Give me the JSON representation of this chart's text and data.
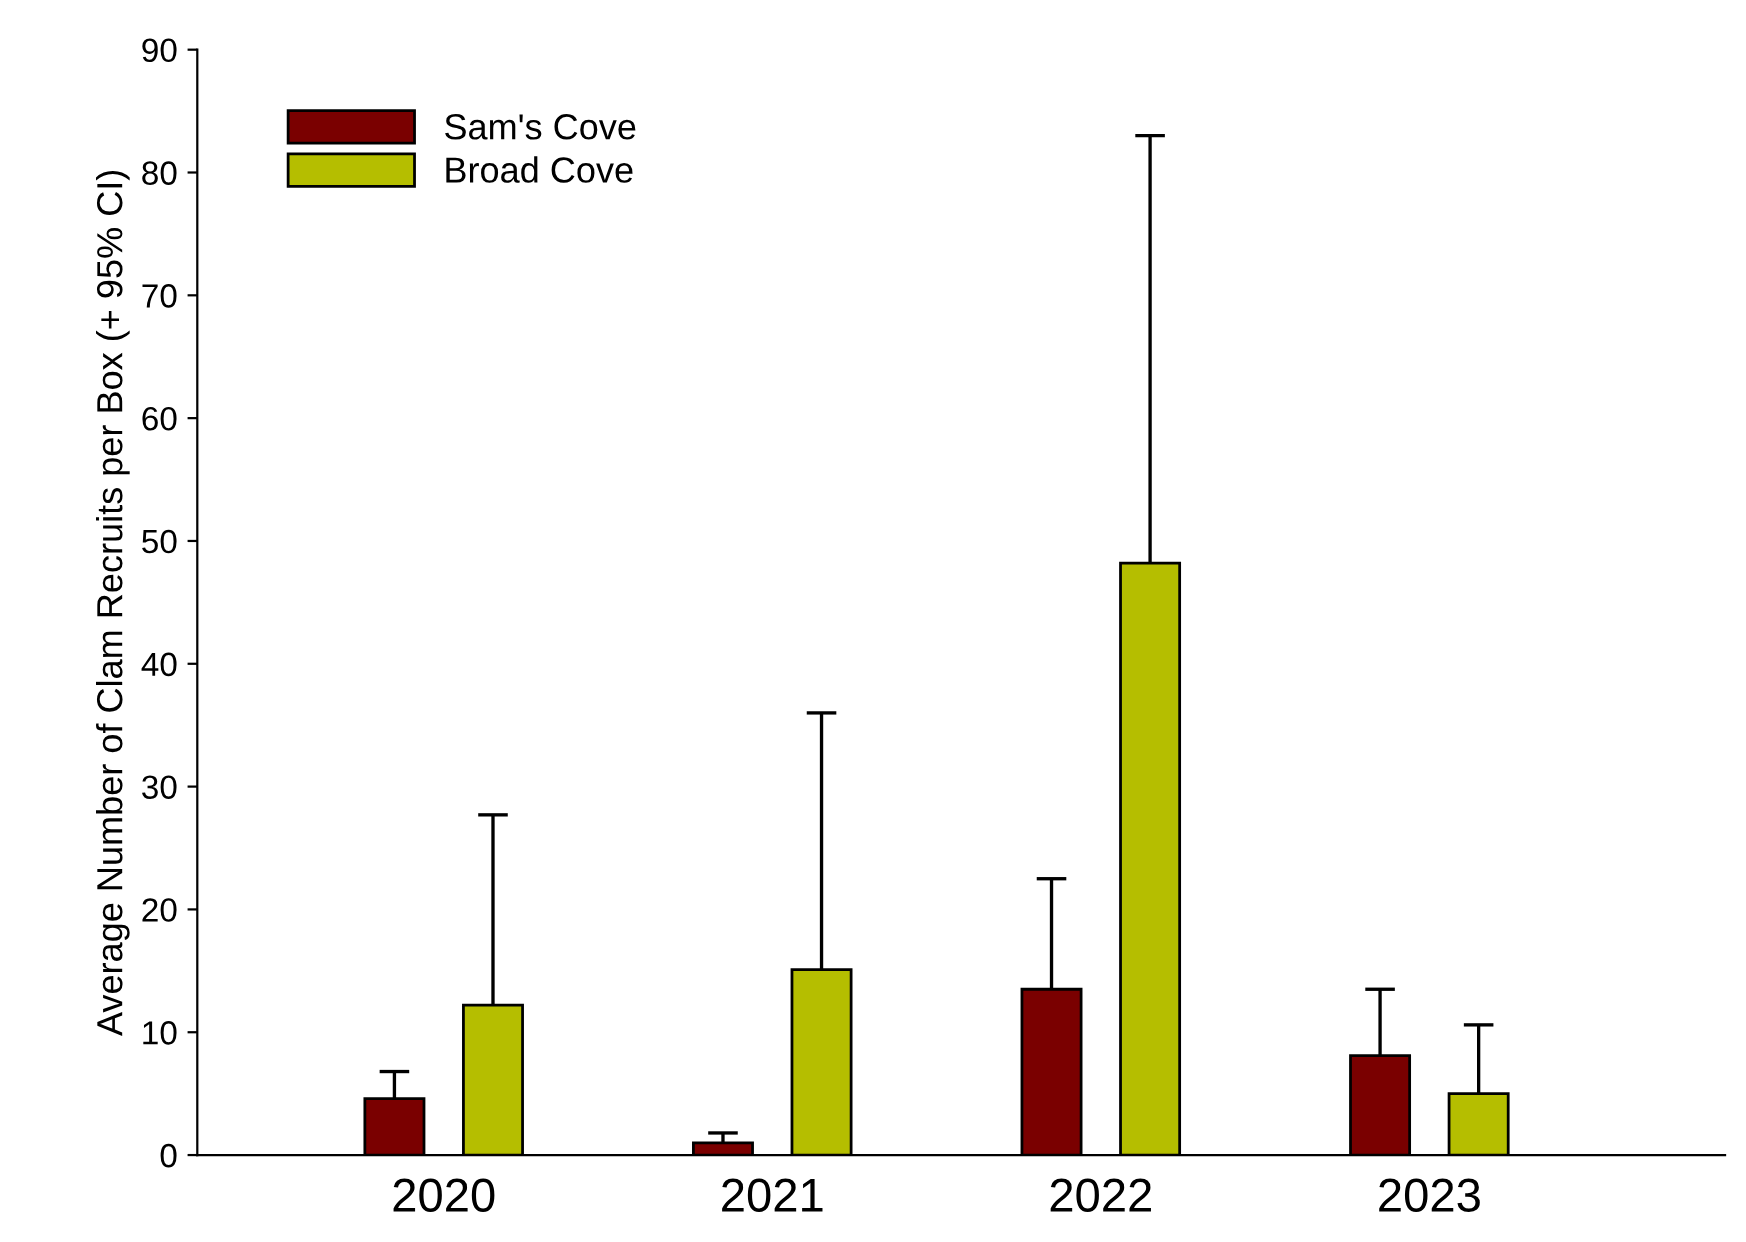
{
  "chart_data": {
    "type": "bar",
    "ylabel": "Average Number of Clam Recruits per Box (+ 95% CI)",
    "categories": [
      "2020",
      "2021",
      "2022",
      "2023"
    ],
    "series": [
      {
        "name": "Sam's Cove",
        "color": "#7a0000",
        "values": [
          4.6,
          1.0,
          13.5,
          8.1
        ],
        "errors": [
          [
            4.6,
            6.8
          ],
          [
            1.0,
            1.8
          ],
          [
            13.5,
            22.5
          ],
          [
            8.1,
            13.5
          ]
        ]
      },
      {
        "name": "Broad Cove",
        "color": "#b5be00",
        "values": [
          12.2,
          15.1,
          48.2,
          5.0
        ],
        "errors": [
          [
            12.2,
            27.7
          ],
          [
            15.1,
            36.0
          ],
          [
            48.2,
            83.0
          ],
          [
            5.0,
            10.6
          ]
        ]
      }
    ],
    "ylim": [
      0,
      90
    ],
    "yticks": [
      0,
      10,
      20,
      30,
      40,
      50,
      60,
      70,
      80,
      90
    ],
    "grid": false,
    "legend": "top left"
  }
}
